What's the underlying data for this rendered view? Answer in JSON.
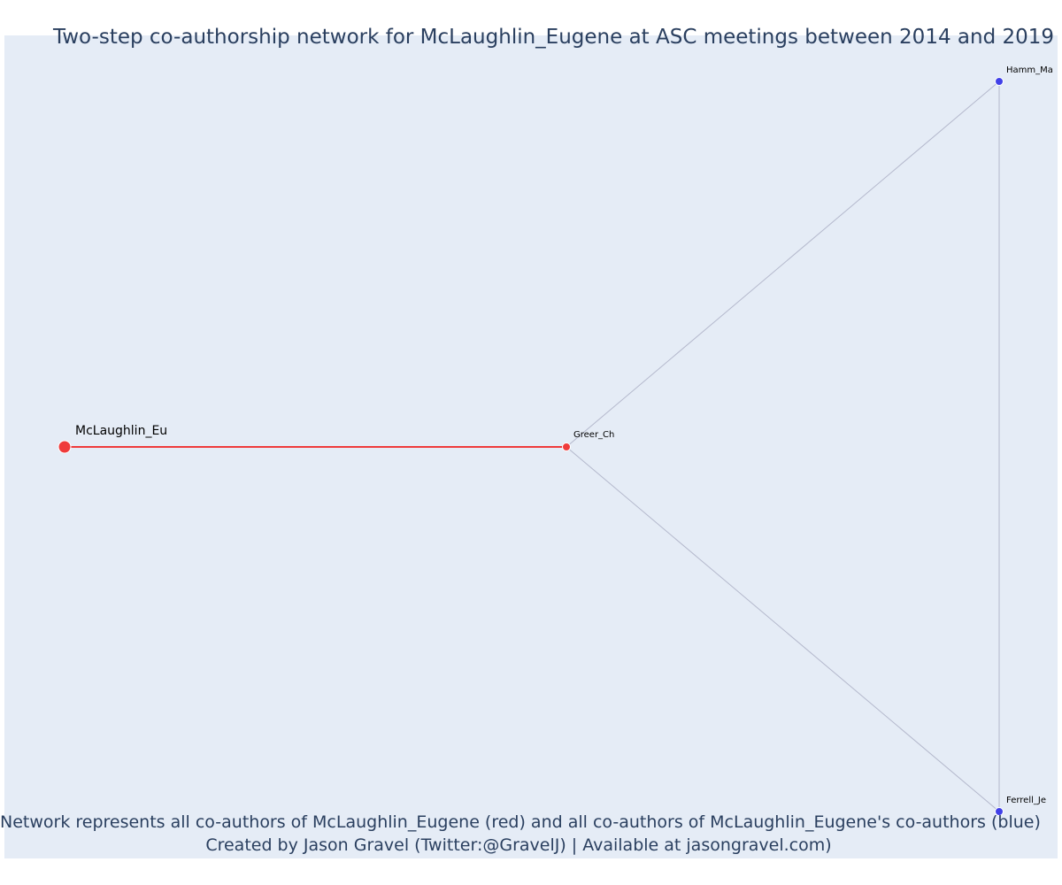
{
  "title": "Two-step co-authorship network for McLaughlin_Eugene at ASC meetings between 2014 and 2019",
  "captions": {
    "line1": "Network represents all co-authors of McLaughlin_Eugene (red) and all co-authors of McLaughlin_Eugene's co-authors (blue)",
    "line2": "Created by Jason Gravel (Twitter:@GravelJ) | Available at jasongravel.com)"
  },
  "colors": {
    "background": "#e5ecf6",
    "direct": "#ef3b3b",
    "secondary": "#4040e8",
    "secondary_edge": "#b4b8cc"
  },
  "chart_data": {
    "type": "network",
    "nodes": [
      {
        "id": "mclaughlin",
        "label": "McLaughlin_Eu",
        "group": "focal"
      },
      {
        "id": "greer",
        "label": "Greer_Ch",
        "group": "direct"
      },
      {
        "id": "hamm",
        "label": "Hamm_Ma",
        "group": "secondary"
      },
      {
        "id": "ferrell",
        "label": "Ferrell_Je",
        "group": "secondary"
      }
    ],
    "edges": [
      {
        "source": "mclaughlin",
        "target": "greer",
        "type": "direct"
      },
      {
        "source": "greer",
        "target": "hamm",
        "type": "secondary"
      },
      {
        "source": "greer",
        "target": "ferrell",
        "type": "secondary"
      },
      {
        "source": "hamm",
        "target": "ferrell",
        "type": "secondary"
      }
    ]
  }
}
